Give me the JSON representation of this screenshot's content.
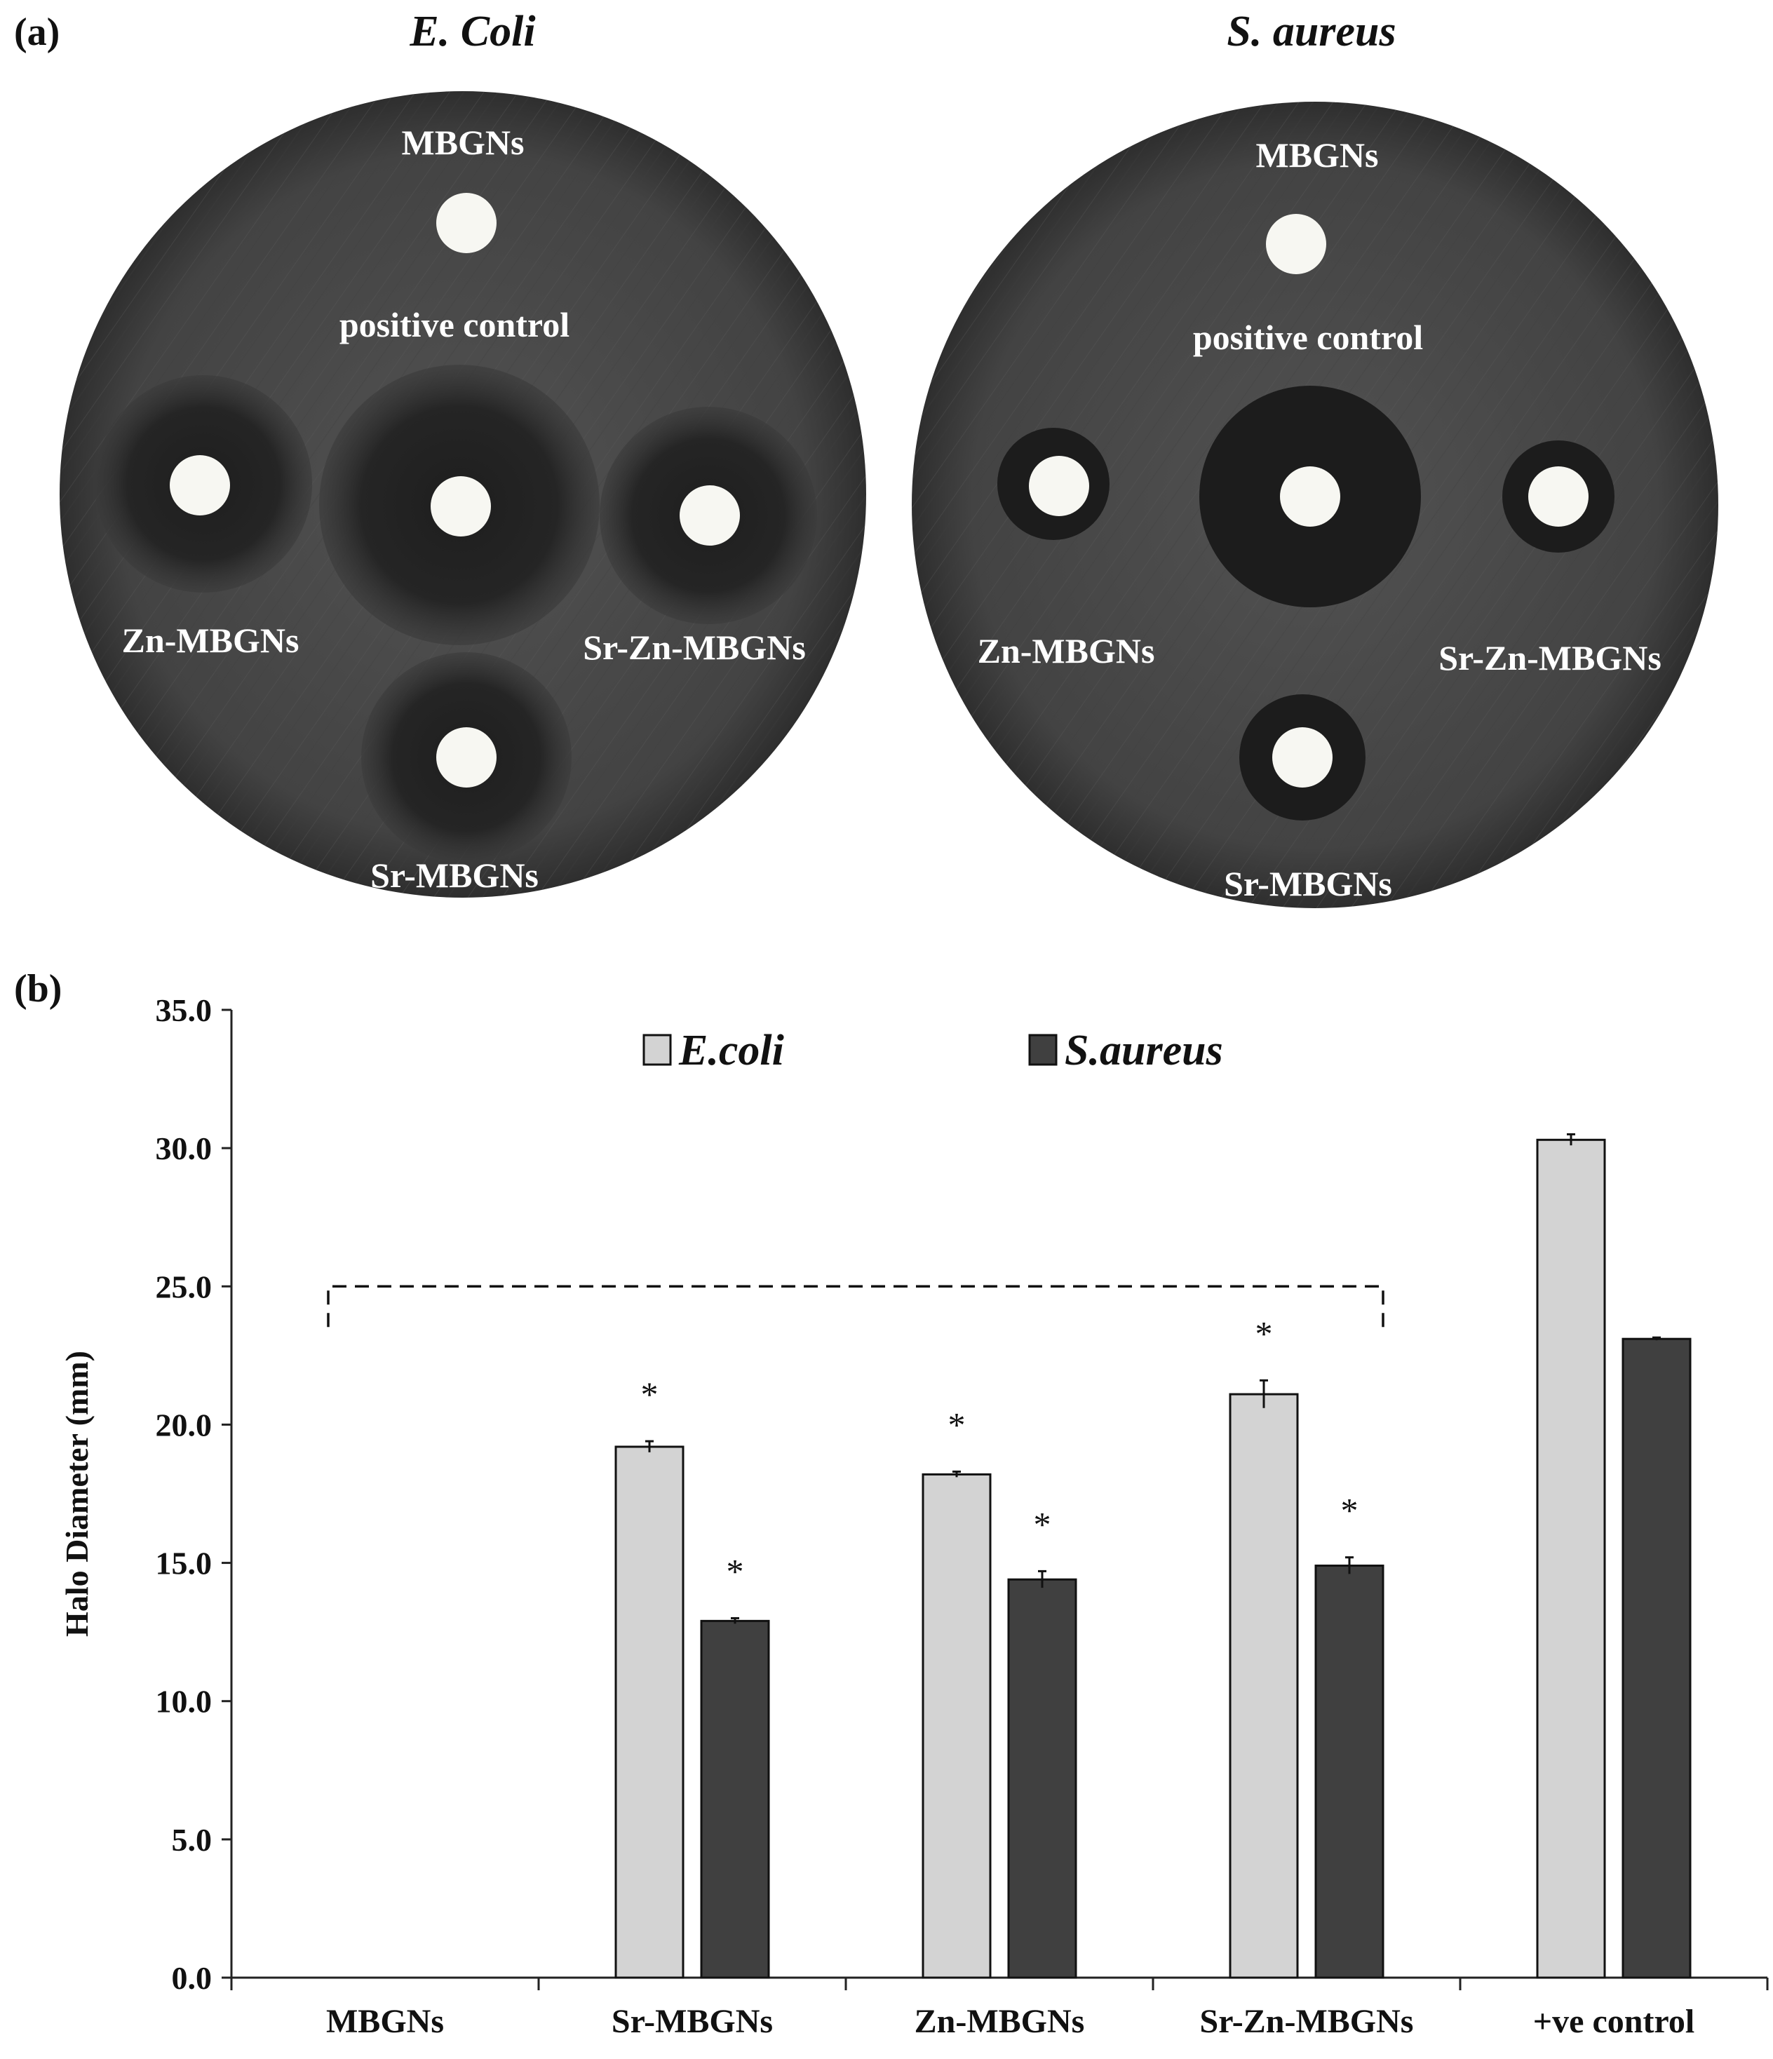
{
  "panel_a": {
    "label": "(a)",
    "plates": [
      {
        "title": "E. Coli",
        "disks": {
          "top": "MBGNs",
          "center": "positive control",
          "left": "Zn-MBGNs",
          "right": "Sr-Zn-MBGNs",
          "bottom": "Sr-MBGNs"
        }
      },
      {
        "title": "S. aureus",
        "disks": {
          "top": "MBGNs",
          "center": "positive control",
          "left": "Zn-MBGNs",
          "right": "Sr-Zn-MBGNs",
          "bottom": "Sr-MBGNs"
        }
      }
    ]
  },
  "panel_b": {
    "label": "(b)"
  },
  "colors": {
    "ecoli": "#d3d3d3",
    "saureus": "#404040",
    "plate": "#4a4a4a",
    "halo": "#232323",
    "disk": "#f7f7f2"
  },
  "chart_data": {
    "type": "bar",
    "title": "",
    "xlabel": "",
    "ylabel": "Halo Diameter (mm)",
    "ylim": [
      0,
      35
    ],
    "yticks": [
      "0.0",
      "5.0",
      "10.0",
      "15.0",
      "20.0",
      "25.0",
      "30.0",
      "35.0"
    ],
    "categories": [
      "MBGNs",
      "Sr-MBGNs",
      "Zn-MBGNs",
      "Sr-Zn-MBGNs",
      "+ve control"
    ],
    "legend_position": "top",
    "series": [
      {
        "name": "E.coli",
        "values": [
          0,
          19.2,
          18.2,
          21.1,
          30.3
        ],
        "errors": [
          0,
          0.2,
          0.1,
          0.5,
          0.2
        ],
        "significance": [
          "",
          "*",
          "*",
          "*",
          ""
        ]
      },
      {
        "name": "S.aureus",
        "values": [
          0,
          12.9,
          14.4,
          14.9,
          23.1
        ],
        "errors": [
          0,
          0.1,
          0.3,
          0.3,
          0.05
        ],
        "significance": [
          "",
          "*",
          "*",
          "*",
          ""
        ]
      }
    ],
    "comparison_bracket": {
      "from": "MBGNs",
      "to": "Sr-Zn-MBGNs",
      "level": 25.0,
      "style": "dashed"
    }
  }
}
